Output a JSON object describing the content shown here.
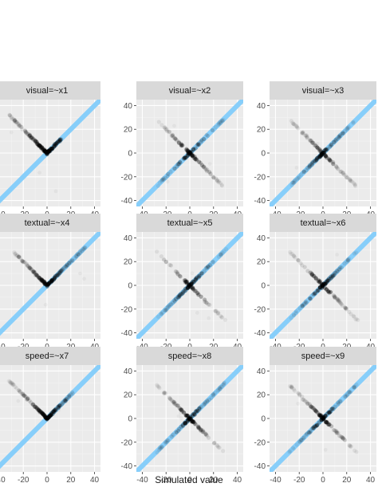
{
  "chart_data": {
    "type": "scatter",
    "xlabel": "Simulated value",
    "ylabel": "",
    "xlim": [
      -45,
      45
    ],
    "ylim": [
      -45,
      45
    ],
    "x_ticks": [
      -40,
      -20,
      0,
      20,
      40
    ],
    "y_ticks": [
      -40,
      -20,
      0,
      20,
      40
    ],
    "grid": true,
    "colors": {
      "panel_background": "#ebebeb",
      "grid_major": "#ffffff",
      "strip_background": "#d9d9d9",
      "identity_line": "#87cefa",
      "points": "#000000"
    },
    "reference_line": {
      "slope": 1,
      "intercept": 0,
      "label": ""
    },
    "panels": [
      {
        "title": "visual=~x1",
        "shape": "v",
        "spread": [
          -32,
          12
        ]
      },
      {
        "title": "visual=~x2",
        "shape": "x",
        "spread": [
          -28,
          28
        ]
      },
      {
        "title": "visual=~x3",
        "shape": "x",
        "spread": [
          -27,
          28
        ]
      },
      {
        "title": "textual=~x4",
        "shape": "v",
        "spread": [
          -28,
          32
        ]
      },
      {
        "title": "textual=~x5",
        "shape": "x",
        "spread": [
          -28,
          30
        ]
      },
      {
        "title": "textual=~x6",
        "shape": "x",
        "spread": [
          -28,
          30
        ]
      },
      {
        "title": "speed=~x7",
        "shape": "v",
        "spread": [
          -32,
          22
        ]
      },
      {
        "title": "speed=~x8",
        "shape": "x",
        "spread": [
          -28,
          30
        ]
      },
      {
        "title": "speed=~x9",
        "shape": "x",
        "spread": [
          -28,
          28
        ]
      }
    ]
  }
}
